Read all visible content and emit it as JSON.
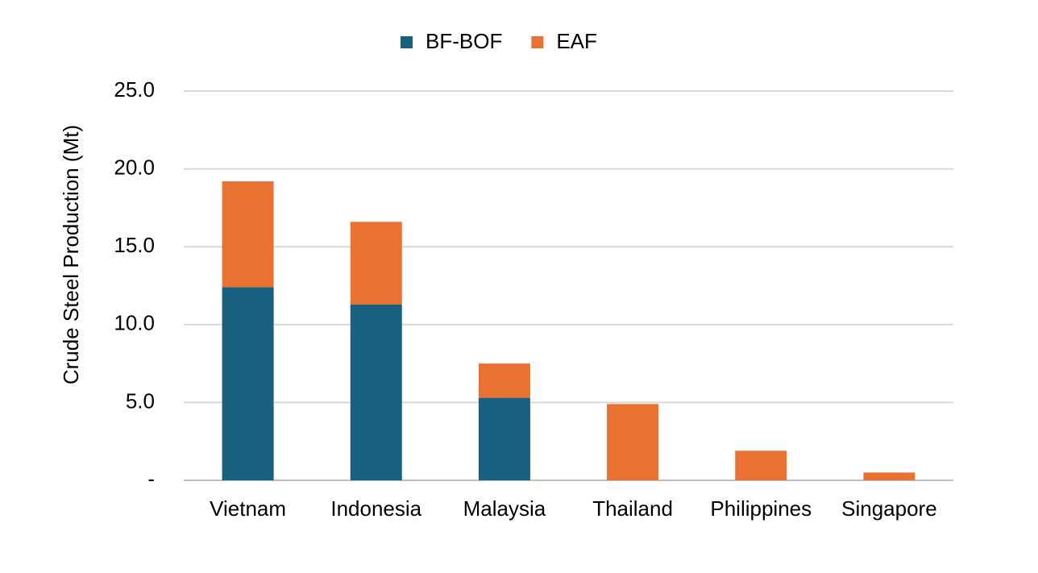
{
  "chart_data": {
    "type": "stacked_bar",
    "y_label": "Crude Steel Production (Mt)",
    "categories": [
      "Vietnam",
      "Indonesia",
      "Malaysia",
      "Thailand",
      "Philippines",
      "Singapore"
    ],
    "series": [
      {
        "name": "BF-BOF",
        "color": "#17607f",
        "values": [
          12.4,
          11.3,
          5.3,
          0,
          0,
          0
        ]
      },
      {
        "name": "EAF",
        "color": "#e97132",
        "values": [
          6.8,
          5.3,
          2.2,
          4.9,
          1.9,
          0.5
        ]
      }
    ],
    "ylim": [
      0,
      25
    ],
    "yticks": [
      {
        "value": 0,
        "label": "-"
      },
      {
        "value": 5,
        "label": "5.0"
      },
      {
        "value": 10,
        "label": "10.0"
      },
      {
        "value": 15,
        "label": "15.0"
      },
      {
        "value": 20,
        "label": "20.0"
      },
      {
        "value": 25,
        "label": "25.0"
      }
    ],
    "grid": true,
    "legend": "top"
  }
}
